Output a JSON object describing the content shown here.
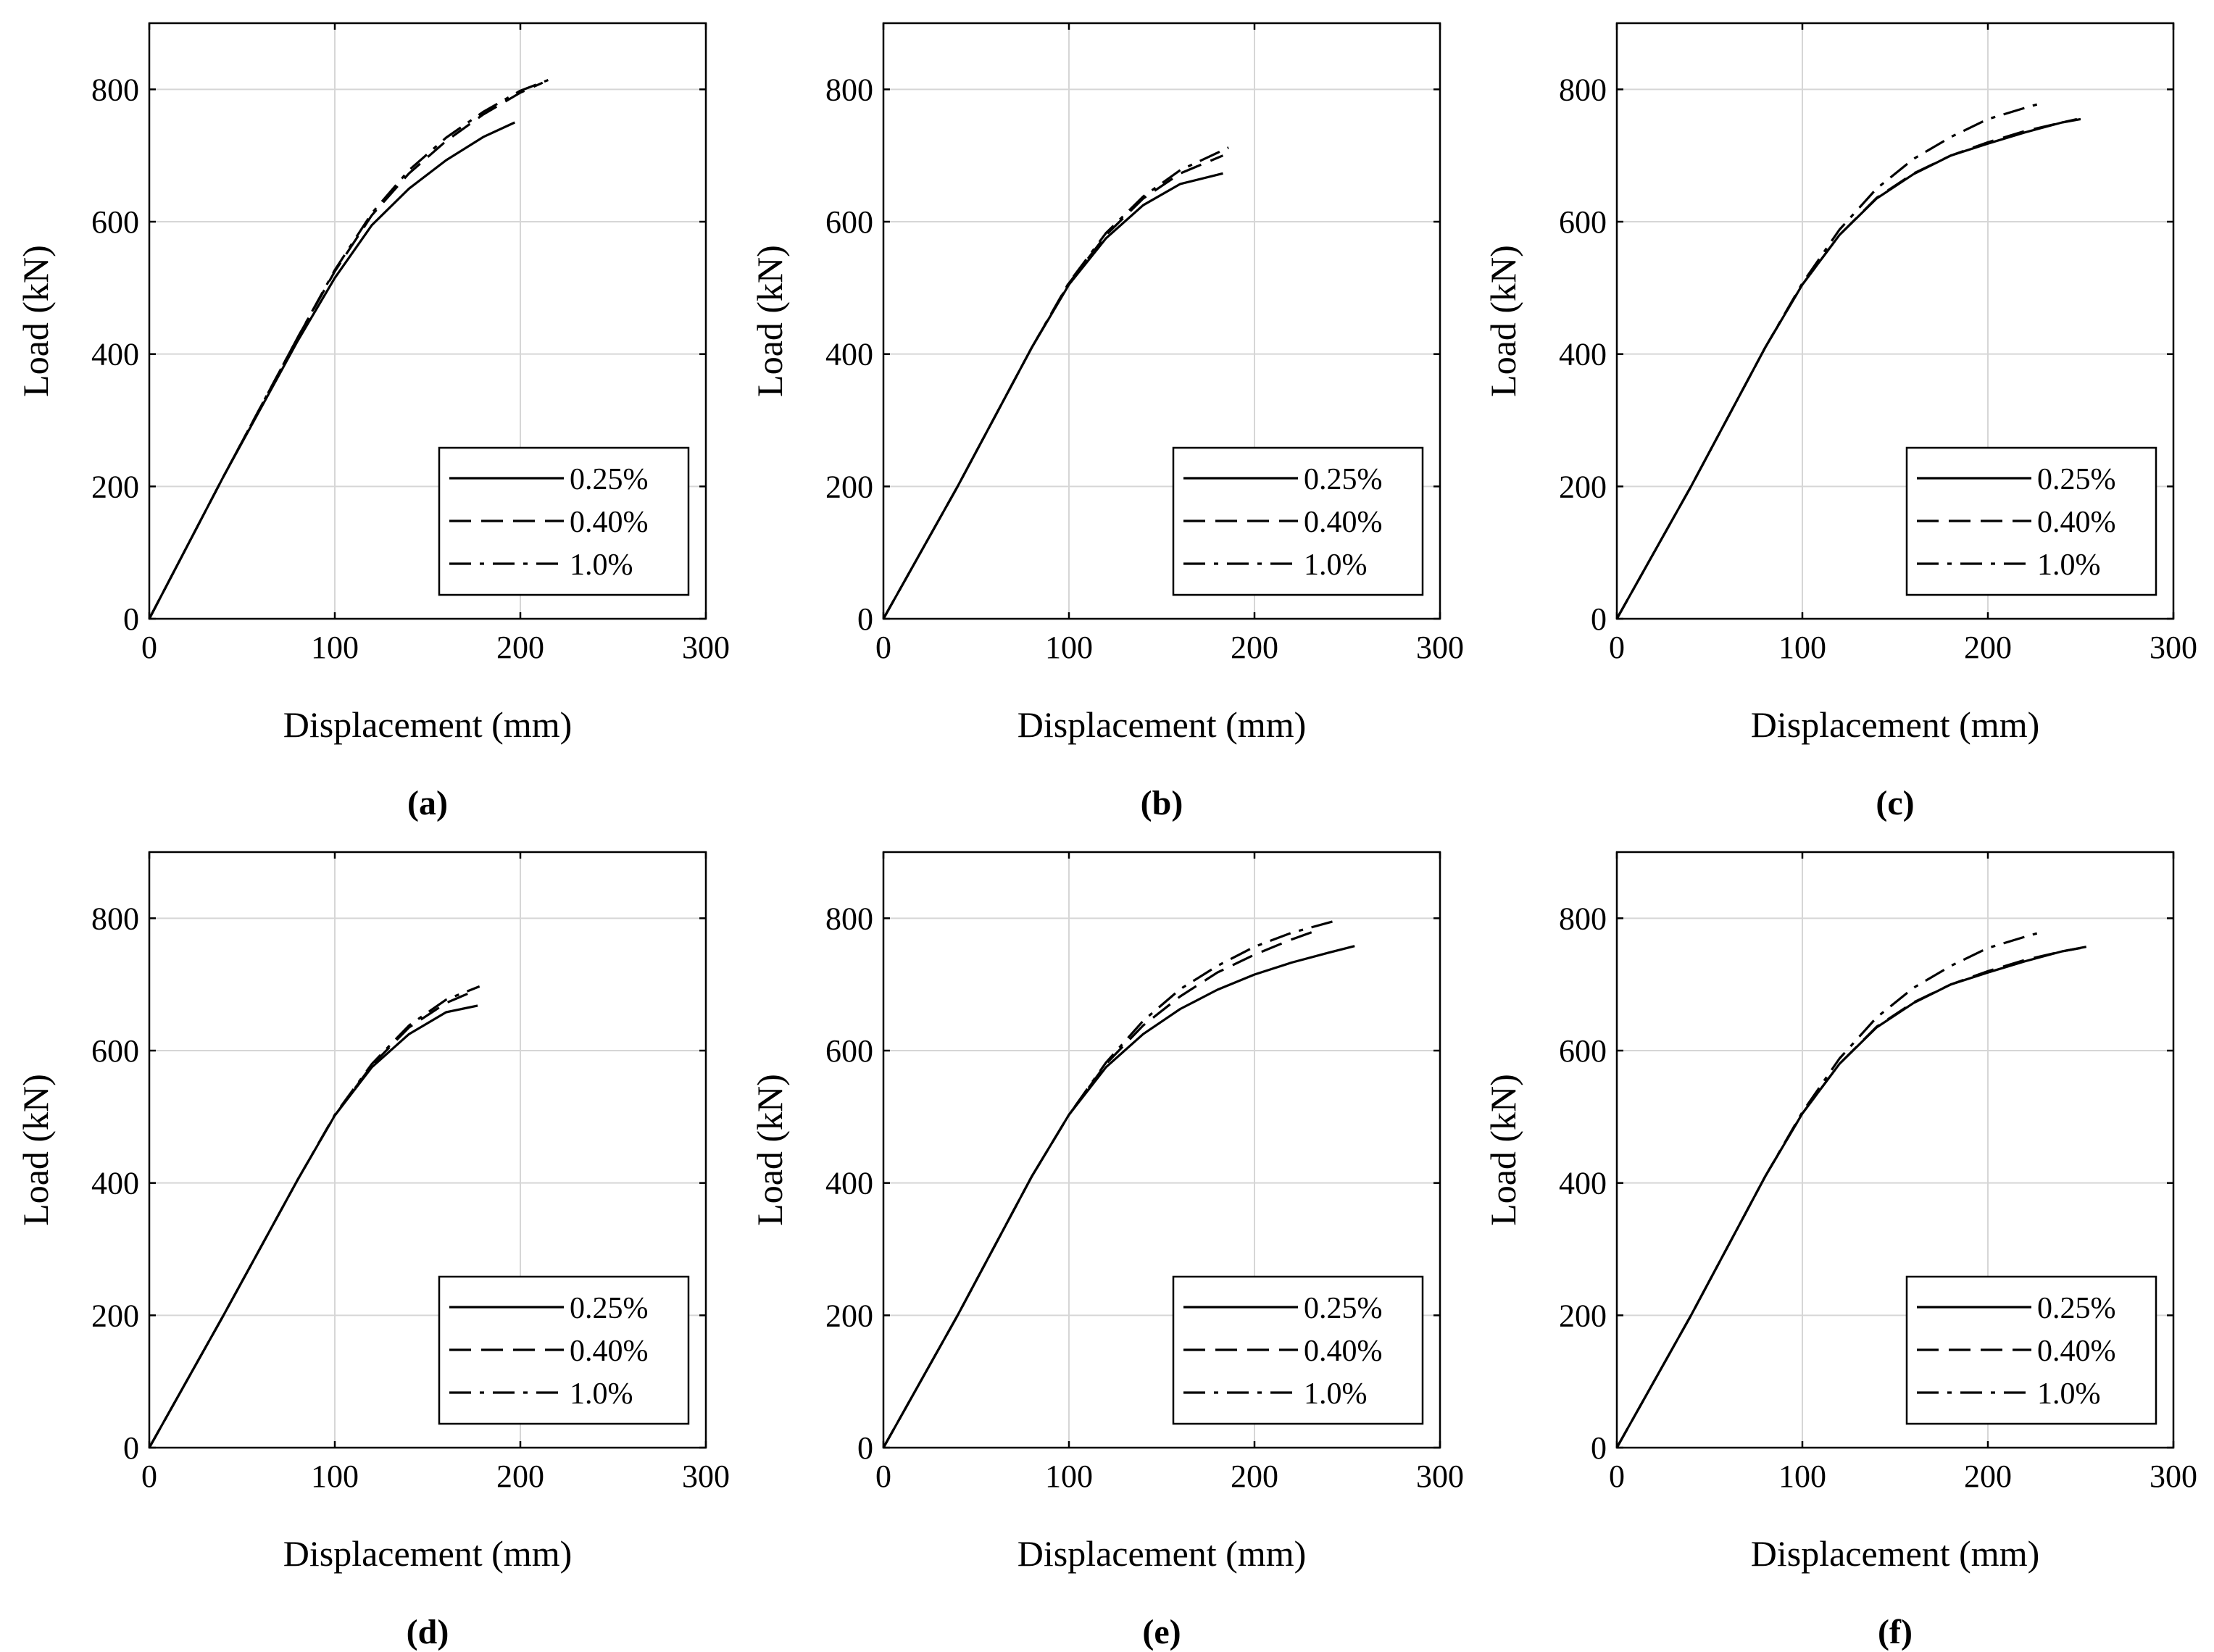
{
  "chart_data": [
    {
      "panel": "(a)",
      "type": "line",
      "xlabel": "Displacement (mm)",
      "ylabel": "Load (kN)",
      "xlim": [
        0,
        300
      ],
      "ylim": [
        0,
        900
      ],
      "xticks": [
        0,
        100,
        200,
        300
      ],
      "yticks": [
        0,
        200,
        400,
        600,
        800
      ],
      "grid": true,
      "legend_position": "bottom-right",
      "series": [
        {
          "name": "0.25%",
          "style": "solid",
          "x": [
            0,
            40,
            80,
            100,
            120,
            140,
            160,
            180,
            197
          ],
          "y": [
            0,
            215,
            420,
            515,
            595,
            650,
            693,
            728,
            750
          ]
        },
        {
          "name": "0.40%",
          "style": "dashed",
          "x": [
            0,
            40,
            80,
            100,
            120,
            140,
            160,
            180,
            200,
            212
          ],
          "y": [
            0,
            215,
            425,
            525,
            610,
            673,
            722,
            762,
            795,
            810
          ]
        },
        {
          "name": "1.0%",
          "style": "dashdot",
          "x": [
            0,
            40,
            80,
            100,
            120,
            140,
            160,
            180,
            200,
            215
          ],
          "y": [
            0,
            215,
            425,
            527,
            613,
            678,
            727,
            766,
            798,
            814
          ]
        }
      ]
    },
    {
      "panel": "(b)",
      "type": "line",
      "xlabel": "Displacement (mm)",
      "ylabel": "Load (kN)",
      "xlim": [
        0,
        300
      ],
      "ylim": [
        0,
        900
      ],
      "xticks": [
        0,
        100,
        200,
        300
      ],
      "yticks": [
        0,
        200,
        400,
        600,
        800
      ],
      "grid": true,
      "legend_position": "bottom-right",
      "series": [
        {
          "name": "0.25%",
          "style": "solid",
          "x": [
            0,
            40,
            80,
            100,
            120,
            140,
            160,
            183
          ],
          "y": [
            0,
            200,
            410,
            505,
            575,
            625,
            657,
            673
          ]
        },
        {
          "name": "0.40%",
          "style": "dashed",
          "x": [
            0,
            40,
            80,
            100,
            120,
            140,
            160,
            183
          ],
          "y": [
            0,
            200,
            410,
            507,
            580,
            635,
            673,
            700
          ]
        },
        {
          "name": "1.0%",
          "style": "dashdot",
          "x": [
            0,
            40,
            80,
            100,
            120,
            140,
            160,
            186
          ],
          "y": [
            0,
            200,
            410,
            508,
            583,
            638,
            678,
            712
          ]
        }
      ]
    },
    {
      "panel": "(c)",
      "type": "line",
      "xlabel": "Displacement (mm)",
      "ylabel": "Load (kN)",
      "xlim": [
        0,
        300
      ],
      "ylim": [
        0,
        900
      ],
      "xticks": [
        0,
        100,
        200,
        300
      ],
      "yticks": [
        0,
        200,
        400,
        600,
        800
      ],
      "grid": true,
      "legend_position": "bottom-right",
      "series": [
        {
          "name": "0.25%",
          "style": "solid",
          "x": [
            0,
            40,
            80,
            100,
            120,
            140,
            160,
            180,
            200,
            220,
            240,
            250
          ],
          "y": [
            0,
            200,
            410,
            505,
            580,
            635,
            672,
            700,
            718,
            735,
            750,
            755
          ]
        },
        {
          "name": "0.40%",
          "style": "dashed",
          "x": [
            0,
            40,
            80,
            100,
            120,
            140,
            160,
            180,
            200,
            220,
            240,
            248
          ],
          "y": [
            0,
            200,
            410,
            505,
            580,
            636,
            673,
            700,
            720,
            737,
            750,
            755
          ]
        },
        {
          "name": "1.0%",
          "style": "dashdot",
          "x": [
            0,
            40,
            80,
            100,
            120,
            140,
            160,
            180,
            200,
            220,
            230
          ],
          "y": [
            0,
            200,
            410,
            507,
            588,
            650,
            695,
            728,
            755,
            772,
            780
          ]
        }
      ]
    },
    {
      "panel": "(d)",
      "type": "line",
      "xlabel": "Displacement (mm)",
      "ylabel": "Load (kN)",
      "xlim": [
        0,
        300
      ],
      "ylim": [
        0,
        900
      ],
      "xticks": [
        0,
        100,
        200,
        300
      ],
      "yticks": [
        0,
        200,
        400,
        600,
        800
      ],
      "grid": true,
      "legend_position": "bottom-right",
      "series": [
        {
          "name": "0.25%",
          "style": "solid",
          "x": [
            0,
            40,
            80,
            100,
            120,
            140,
            160,
            177
          ],
          "y": [
            0,
            200,
            405,
            502,
            575,
            625,
            658,
            668
          ]
        },
        {
          "name": "0.40%",
          "style": "dashed",
          "x": [
            0,
            40,
            80,
            100,
            120,
            140,
            160,
            175
          ],
          "y": [
            0,
            200,
            405,
            502,
            578,
            635,
            672,
            690
          ]
        },
        {
          "name": "1.0%",
          "style": "dashdot",
          "x": [
            0,
            40,
            80,
            100,
            120,
            140,
            160,
            178
          ],
          "y": [
            0,
            200,
            405,
            503,
            580,
            638,
            677,
            697
          ]
        }
      ]
    },
    {
      "panel": "(e)",
      "type": "line",
      "xlabel": "Displacement (mm)",
      "ylabel": "Load (kN)",
      "xlim": [
        0,
        300
      ],
      "ylim": [
        0,
        900
      ],
      "xticks": [
        0,
        100,
        200,
        300
      ],
      "yticks": [
        0,
        200,
        400,
        600,
        800
      ],
      "grid": true,
      "legend_position": "bottom-right",
      "series": [
        {
          "name": "0.25%",
          "style": "solid",
          "x": [
            0,
            40,
            80,
            100,
            120,
            140,
            160,
            180,
            200,
            220,
            240,
            254
          ],
          "y": [
            0,
            200,
            410,
            503,
            575,
            625,
            663,
            692,
            715,
            733,
            748,
            758
          ]
        },
        {
          "name": "0.40%",
          "style": "dashed",
          "x": [
            0,
            40,
            80,
            100,
            120,
            140,
            160,
            180,
            200,
            220,
            232
          ],
          "y": [
            0,
            200,
            410,
            503,
            580,
            638,
            682,
            718,
            745,
            768,
            780
          ]
        },
        {
          "name": "1.0%",
          "style": "dashdot",
          "x": [
            0,
            40,
            80,
            100,
            120,
            140,
            160,
            180,
            200,
            220,
            242
          ],
          "y": [
            0,
            200,
            410,
            503,
            582,
            645,
            693,
            728,
            757,
            778,
            795
          ]
        }
      ]
    },
    {
      "panel": "(f)",
      "type": "line",
      "xlabel": "Displacement (mm)",
      "ylabel": "Load (kN)",
      "xlim": [
        0,
        300
      ],
      "ylim": [
        0,
        900
      ],
      "xticks": [
        0,
        100,
        200,
        300
      ],
      "yticks": [
        0,
        200,
        400,
        600,
        800
      ],
      "grid": true,
      "legend_position": "bottom-right",
      "series": [
        {
          "name": "0.25%",
          "style": "solid",
          "x": [
            0,
            40,
            80,
            100,
            120,
            140,
            160,
            180,
            200,
            220,
            240,
            250
          ],
          "y": [
            0,
            200,
            410,
            505,
            580,
            635,
            672,
            700,
            718,
            735,
            750,
            755
          ]
        },
        {
          "name": "0.40%",
          "style": "dashed",
          "x": [
            0,
            40,
            80,
            100,
            120,
            140,
            160,
            180,
            200,
            220,
            240,
            255
          ],
          "y": [
            0,
            200,
            410,
            505,
            580,
            636,
            673,
            700,
            720,
            737,
            750,
            758
          ]
        },
        {
          "name": "1.0%",
          "style": "dashdot",
          "x": [
            0,
            40,
            80,
            100,
            120,
            140,
            160,
            180,
            200,
            220,
            230
          ],
          "y": [
            0,
            200,
            410,
            507,
            588,
            650,
            695,
            728,
            755,
            772,
            780
          ]
        }
      ]
    }
  ]
}
